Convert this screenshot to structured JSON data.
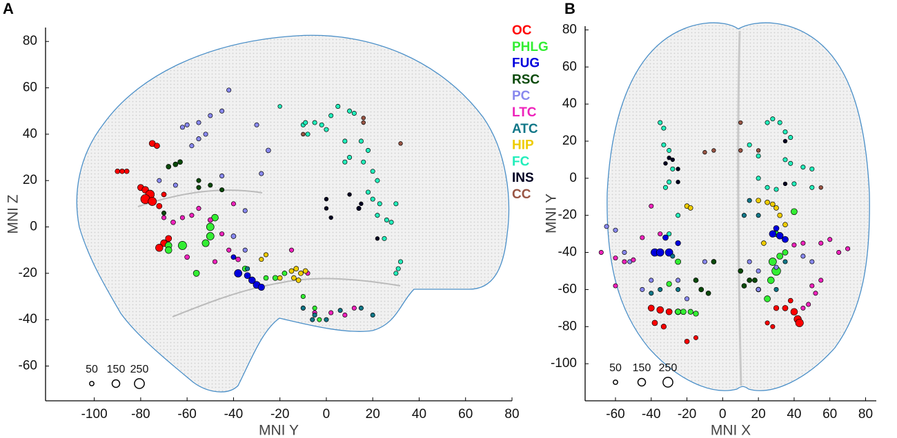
{
  "panel_labels": [
    "A",
    "B"
  ],
  "chart_data": [
    {
      "type": "scatter",
      "xlabel": "MNI Y",
      "ylabel": "MNI Z",
      "xlim": [
        -121,
        80
      ],
      "ylim": [
        -75,
        86
      ],
      "xticks": [
        -100,
        -80,
        -60,
        -40,
        -20,
        0,
        20,
        40,
        60,
        80
      ],
      "yticks": [
        -60,
        -40,
        -20,
        0,
        20,
        40,
        60,
        80
      ],
      "size_legend": [
        50,
        150,
        250
      ],
      "series": [
        {
          "name": "OC",
          "color": "#ff0000",
          "x": [
            -75,
            -73,
            -90,
            -88,
            -86,
            -80,
            -78,
            -76,
            -78,
            -75,
            -72,
            -68,
            -70,
            -72,
            -70
          ],
          "y": [
            36,
            35,
            24,
            24,
            24,
            17,
            16,
            14,
            12,
            11,
            9,
            -5,
            -7,
            -9,
            14
          ],
          "sizes": [
            100,
            80,
            60,
            60,
            60,
            100,
            120,
            200,
            220,
            180,
            80,
            100,
            120,
            140,
            60
          ]
        },
        {
          "name": "PHLG",
          "color": "#33ee33",
          "x": [
            -50,
            -52,
            -48,
            -62,
            -68,
            -56,
            -40,
            -35,
            -26,
            -22,
            -18,
            -10,
            -5,
            -3,
            -50,
            -68
          ],
          "y": [
            0,
            -7,
            4,
            -8,
            -8,
            -20,
            -13,
            -18,
            -22,
            -22,
            -20,
            -30,
            -35,
            -40,
            -4,
            -10
          ],
          "sizes": [
            150,
            130,
            120,
            180,
            120,
            100,
            60,
            80,
            60,
            70,
            60,
            50,
            50,
            50,
            150,
            120
          ]
        },
        {
          "name": "FUG",
          "color": "#0000dd",
          "x": [
            -38,
            -32,
            -30,
            -28,
            -34,
            -40
          ],
          "y": [
            -20,
            -23,
            -25,
            -26,
            -21,
            -13
          ],
          "sizes": [
            150,
            120,
            130,
            110,
            100,
            60
          ]
        },
        {
          "name": "RSC",
          "color": "#0a4a0a",
          "x": [
            -63,
            -65,
            -68,
            -55,
            -55,
            -50,
            -45,
            -70
          ],
          "y": [
            28,
            27,
            26,
            20,
            17,
            18,
            16,
            6
          ],
          "sizes": [
            60,
            60,
            60,
            50,
            50,
            50,
            50,
            50
          ]
        },
        {
          "name": "PC",
          "color": "#8888ee",
          "x": [
            -62,
            -60,
            -55,
            -50,
            -52,
            -55,
            -58,
            -45,
            -42,
            -30,
            -25,
            -28,
            -35,
            -72,
            -65,
            -45,
            -40,
            -35
          ],
          "y": [
            43,
            44,
            45,
            48,
            40,
            38,
            35,
            50,
            59,
            44,
            33,
            23,
            7,
            20,
            18,
            22,
            -4,
            -10
          ],
          "sizes": [
            50,
            50,
            50,
            50,
            50,
            50,
            50,
            50,
            50,
            50,
            60,
            50,
            50,
            50,
            50,
            50,
            60,
            50
          ]
        },
        {
          "name": "LTC",
          "color": "#ee22bb",
          "x": [
            -70,
            -66,
            -62,
            -58,
            -55,
            -50,
            -45,
            -42,
            -38,
            -48,
            -60,
            -10,
            -5,
            2,
            8,
            12,
            -8,
            -15,
            -40
          ],
          "y": [
            4,
            2,
            4,
            5,
            8,
            3,
            -3,
            -10,
            -14,
            -15,
            -13,
            -35,
            -37,
            -37,
            -38,
            -35,
            -20,
            -10,
            10
          ],
          "sizes": [
            50,
            60,
            50,
            50,
            50,
            60,
            50,
            50,
            60,
            50,
            60,
            50,
            50,
            50,
            50,
            50,
            50,
            50,
            50
          ]
        },
        {
          "name": "ATC",
          "color": "#117788",
          "x": [
            -34,
            -10,
            -5,
            0,
            6,
            15,
            20,
            -6
          ],
          "y": [
            -18,
            -35,
            -38,
            -40,
            -36,
            -35,
            -38,
            -40
          ],
          "sizes": [
            50,
            50,
            50,
            50,
            50,
            50,
            50,
            50
          ]
        },
        {
          "name": "HIP",
          "color": "#eecc00",
          "x": [
            -15,
            -13,
            -11,
            -9,
            -14,
            -12,
            -26,
            -28,
            -20
          ],
          "y": [
            -19,
            -18,
            -20,
            -19,
            -22,
            -23,
            -12,
            -14,
            -22
          ],
          "sizes": [
            60,
            60,
            60,
            60,
            60,
            60,
            50,
            50,
            60
          ]
        },
        {
          "name": "FC",
          "color": "#22eebb",
          "x": [
            -10,
            -9,
            -5,
            -2,
            0,
            5,
            10,
            12,
            8,
            15,
            18,
            16,
            10,
            8,
            20,
            22,
            18,
            20,
            23,
            22,
            26,
            28,
            30,
            32,
            31,
            30,
            25,
            -20,
            -8,
            2
          ],
          "y": [
            44,
            45,
            45,
            44,
            42,
            52,
            50,
            49,
            37,
            37,
            33,
            28,
            30,
            28,
            24,
            20,
            15,
            12,
            10,
            5,
            3,
            2,
            10,
            -15,
            -18,
            -20,
            -5,
            52,
            40,
            48
          ],
          "sizes": [
            50,
            50,
            50,
            50,
            50,
            50,
            50,
            50,
            50,
            50,
            50,
            50,
            50,
            50,
            50,
            50,
            50,
            50,
            50,
            50,
            50,
            50,
            50,
            50,
            50,
            50,
            50,
            40,
            50,
            50
          ]
        },
        {
          "name": "INS",
          "color": "#000022",
          "x": [
            0,
            0,
            2,
            10,
            15,
            14,
            22
          ],
          "y": [
            12,
            8,
            4,
            14,
            10,
            8,
            -5
          ],
          "sizes": [
            40,
            40,
            40,
            40,
            40,
            50,
            40
          ]
        },
        {
          "name": "CC",
          "color": "#995544",
          "x": [
            16,
            16,
            32,
            -10
          ],
          "y": [
            45,
            47,
            36,
            40
          ],
          "sizes": [
            40,
            40,
            40,
            40
          ]
        }
      ]
    },
    {
      "type": "scatter",
      "xlabel": "MNI X",
      "ylabel": "MNI Y",
      "xlim": [
        -77,
        86
      ],
      "ylim": [
        -120,
        82
      ],
      "xticks": [
        -60,
        -40,
        -20,
        0,
        20,
        40,
        60,
        80
      ],
      "yticks": [
        -100,
        -80,
        -60,
        -40,
        -20,
        0,
        20,
        40,
        60,
        80
      ],
      "size_legend": [
        50,
        150,
        250
      ],
      "series": [
        {
          "x": [
            -40,
            -35,
            -30,
            -25,
            -38,
            -33,
            -20,
            -15,
            40,
            42,
            43,
            35,
            30,
            28,
            25,
            38
          ],
          "y": [
            -70,
            -71,
            -72,
            -72,
            -78,
            -80,
            -88,
            -86,
            -72,
            -76,
            -78,
            -70,
            -70,
            -80,
            -78,
            -66
          ],
          "sizes": [
            100,
            120,
            100,
            90,
            80,
            70,
            60,
            50,
            120,
            140,
            160,
            80,
            70,
            50,
            50,
            60
          ]
        },
        {
          "x": [
            -25,
            -30,
            -22,
            -18,
            -15,
            -25,
            30,
            28,
            32,
            25,
            40,
            30,
            27,
            35
          ],
          "y": [
            -45,
            -57,
            -72,
            -72,
            -73,
            -72,
            -50,
            -45,
            -42,
            -65,
            -18,
            -30,
            -55,
            -40
          ],
          "sizes": [
            80,
            70,
            80,
            70,
            70,
            80,
            200,
            150,
            100,
            100,
            100,
            80,
            120,
            80
          ]
        },
        {
          "x": [
            -38,
            -35,
            -30,
            -32,
            -25,
            28,
            32,
            35,
            30
          ],
          "y": [
            -40,
            -40,
            -40,
            -32,
            -35,
            -30,
            -31,
            -33,
            -27
          ],
          "sizes": [
            150,
            150,
            150,
            80,
            70,
            120,
            120,
            100,
            80
          ]
        },
        {
          "x": [
            -15,
            -12,
            -8,
            15,
            18,
            12,
            20,
            10,
            -5
          ],
          "y": [
            -55,
            -60,
            -62,
            -55,
            -55,
            -58,
            -60,
            -50,
            -45
          ],
          "sizes": [
            60,
            60,
            60,
            60,
            60,
            60,
            60,
            60,
            60
          ]
        },
        {
          "x": [
            -65,
            -60,
            -55,
            -52,
            -40,
            -45,
            -25,
            -20,
            -10,
            15,
            20,
            20,
            30,
            45,
            50
          ],
          "y": [
            -26,
            -28,
            -40,
            -45,
            -55,
            -60,
            -55,
            -65,
            -45,
            -45,
            -50,
            -60,
            -48,
            -42,
            -45
          ],
          "sizes": [
            50,
            50,
            50,
            50,
            50,
            50,
            50,
            50,
            50,
            50,
            50,
            50,
            50,
            50,
            50
          ]
        },
        {
          "x": [
            -68,
            -60,
            -55,
            -50,
            -45,
            -60,
            -40,
            -35,
            50,
            55,
            52,
            48,
            45,
            55,
            60,
            65,
            70,
            40,
            45
          ],
          "y": [
            -40,
            -43,
            -45,
            -44,
            -32,
            -58,
            -15,
            -30,
            -58,
            -55,
            -62,
            -68,
            -70,
            -35,
            -33,
            -40,
            -38,
            -36,
            -35
          ],
          "sizes": [
            50,
            50,
            50,
            50,
            50,
            50,
            50,
            50,
            50,
            50,
            50,
            50,
            50,
            50,
            50,
            50,
            50,
            50,
            50
          ]
        },
        {
          "x": [
            -40,
            -35,
            -28,
            -25,
            15,
            20,
            12,
            35,
            30
          ],
          "y": [
            -62,
            -60,
            -42,
            -60,
            -12,
            -20,
            -20,
            -45,
            -60
          ],
          "sizes": [
            50,
            50,
            50,
            50,
            50,
            50,
            50,
            50,
            50
          ]
        },
        {
          "x": [
            -20,
            -18,
            20,
            25,
            28,
            30,
            32,
            35,
            23
          ],
          "y": [
            -15,
            -16,
            -12,
            -13,
            -14,
            -16,
            -20,
            -25,
            -35
          ],
          "sizes": [
            60,
            60,
            60,
            60,
            60,
            60,
            60,
            60,
            60
          ]
        },
        {
          "x": [
            -35,
            -33,
            -33,
            -30,
            -28,
            -30,
            -32,
            -25,
            25,
            28,
            32,
            35,
            38,
            35,
            38,
            45,
            50,
            20,
            25,
            30,
            40,
            50,
            15,
            20,
            -30
          ],
          "y": [
            30,
            27,
            18,
            15,
            5,
            -2,
            -5,
            -20,
            30,
            32,
            30,
            25,
            22,
            10,
            8,
            6,
            5,
            0,
            -5,
            -6,
            -3,
            -5,
            18,
            12,
            -30
          ],
          "sizes": [
            50,
            50,
            50,
            50,
            50,
            50,
            50,
            50,
            50,
            50,
            50,
            50,
            50,
            50,
            50,
            50,
            50,
            50,
            50,
            50,
            50,
            50,
            50,
            50,
            50
          ]
        },
        {
          "x": [
            -32,
            -30,
            -28,
            -25,
            35,
            35,
            -25
          ],
          "y": [
            8,
            11,
            10,
            -2,
            20,
            -3,
            5
          ],
          "sizes": [
            40,
            40,
            40,
            40,
            40,
            40,
            40
          ]
        },
        {
          "x": [
            -10,
            -5,
            10,
            20,
            55,
            10
          ],
          "y": [
            14,
            15,
            15,
            15,
            -5,
            30
          ],
          "sizes": [
            40,
            40,
            40,
            40,
            40,
            40
          ]
        }
      ]
    }
  ]
}
